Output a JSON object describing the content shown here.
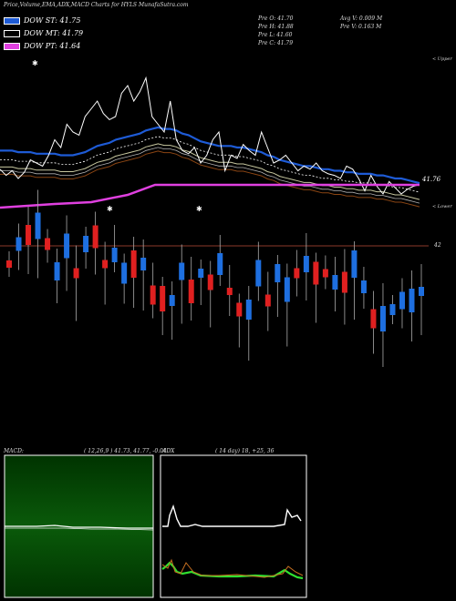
{
  "header": {
    "title": "Price,Volume,EMA,ADX,MACD Charts for HYLS MunafaSutra.com"
  },
  "legend": [
    {
      "label": "DOW ST: 41.75",
      "color": "#1e5bd6"
    },
    {
      "label": "DOW MT: 41.79",
      "color": "#000000"
    },
    {
      "label": "DOW PT: 41.64",
      "color": "#e040e0"
    }
  ],
  "ohlc": {
    "prev_open": "Pre   O: 41.70",
    "prev_high": "Pre   H: 41.88",
    "prev_low": "Pre   L: 41.60",
    "prev_close": "Pre   C: 41.79",
    "avg_vol": "Avg V: 0.009 M",
    "prev_vol": "Pre   V: 0.163 M"
  },
  "annotations": {
    "last_price": "41.76",
    "level": "42",
    "upper": "< Upper",
    "lower": "< Lower"
  },
  "macd": {
    "label": "MACD:",
    "params": "( 12,26,9 ) 41.73, 41.77, -0.04"
  },
  "adx": {
    "label": "ADX",
    "params": "( 14  day) 18, +25, 36"
  },
  "colors": {
    "up": "#1e6fe0",
    "down": "#e02020",
    "ema_blue": "#1e5bd6",
    "magenta": "#e040e0",
    "level": "#8b3a2a"
  },
  "chart_data": {
    "type": "line",
    "ema_fast": [
      41.98,
      41.98,
      41.98,
      41.97,
      41.97,
      41.97,
      41.96,
      41.96,
      41.96,
      41.96,
      41.95,
      41.95,
      41.95,
      41.96,
      41.97,
      41.99,
      42.01,
      42.02,
      42.03,
      42.05,
      42.06,
      42.07,
      42.08,
      42.09,
      42.11,
      42.12,
      42.13,
      42.12,
      42.12,
      42.11,
      42.09,
      42.08,
      42.06,
      42.04,
      42.03,
      42.02,
      42.01,
      42.01,
      42.01,
      42.0,
      42.0,
      41.99,
      41.98,
      41.97,
      41.95,
      41.94,
      41.92,
      41.91,
      41.9,
      41.89,
      41.88,
      41.88,
      41.87,
      41.86,
      41.86,
      41.85,
      41.85,
      41.84,
      41.84,
      41.83,
      41.83,
      41.83,
      41.82,
      41.82,
      41.81,
      41.8,
      41.8,
      41.79,
      41.78,
      41.77
    ],
    "price_close": [
      41.86,
      41.82,
      41.85,
      41.8,
      41.84,
      41.92,
      41.9,
      41.88,
      41.95,
      42.05,
      42.0,
      42.15,
      42.1,
      42.08,
      42.2,
      42.25,
      42.3,
      42.22,
      42.18,
      42.2,
      42.35,
      42.4,
      42.3,
      42.36,
      42.45,
      42.2,
      42.15,
      42.1,
      42.3,
      42.05,
      41.98,
      41.96,
      42.0,
      41.9,
      41.95,
      42.05,
      42.1,
      41.85,
      41.95,
      41.93,
      42.02,
      41.98,
      41.95,
      42.1,
      42.0,
      41.9,
      41.92,
      41.95,
      41.9,
      41.85,
      41.88,
      41.86,
      41.9,
      41.85,
      41.83,
      41.82,
      41.8,
      41.88,
      41.86,
      41.8,
      41.72,
      41.82,
      41.75,
      41.7,
      41.78,
      41.74,
      41.7,
      41.73,
      41.75,
      41.76
    ],
    "ylim": [
      41.6,
      42.6
    ]
  }
}
